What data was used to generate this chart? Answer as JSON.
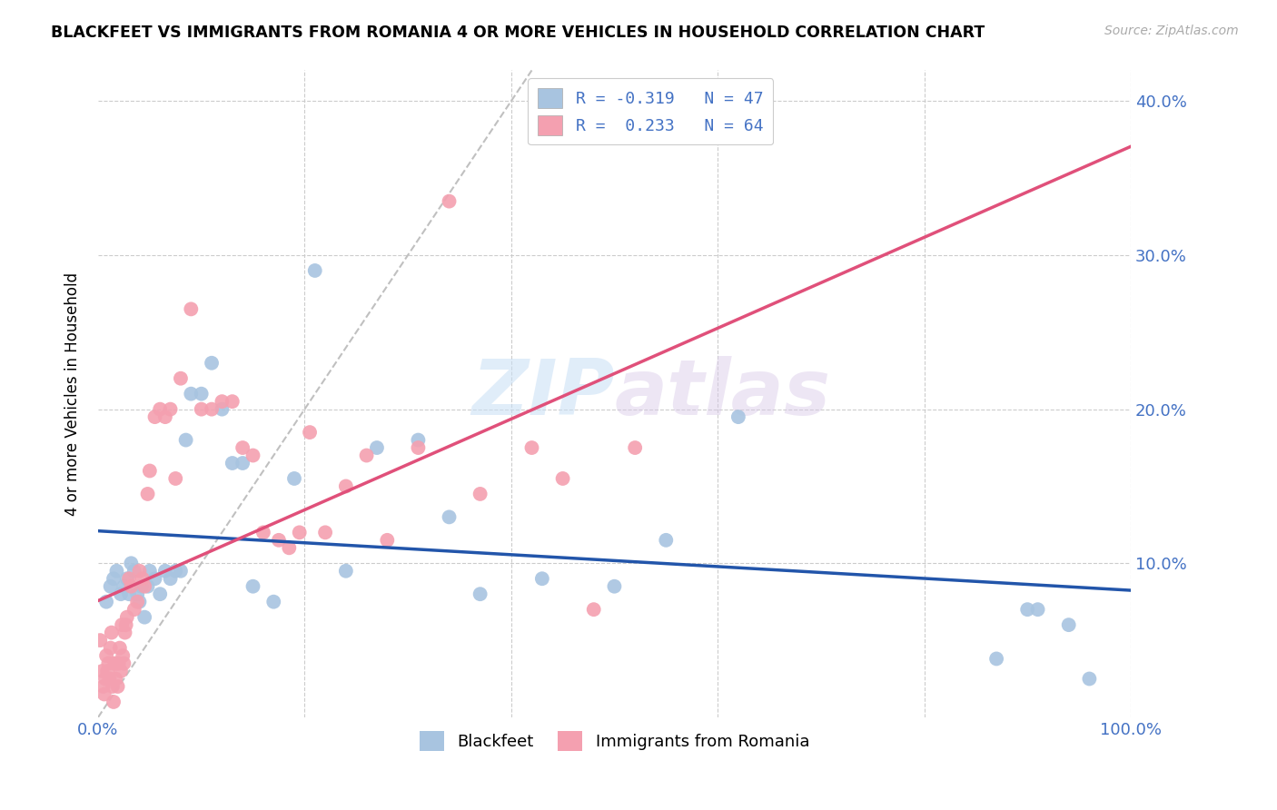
{
  "title": "BLACKFEET VS IMMIGRANTS FROM ROMANIA 4 OR MORE VEHICLES IN HOUSEHOLD CORRELATION CHART",
  "source": "Source: ZipAtlas.com",
  "ylabel": "4 or more Vehicles in Household",
  "xlim": [
    0,
    1.0
  ],
  "ylim": [
    0,
    0.42
  ],
  "yticks": [
    0.0,
    0.1,
    0.2,
    0.3,
    0.4
  ],
  "yticklabels": [
    "",
    "10.0%",
    "20.0%",
    "30.0%",
    "40.0%"
  ],
  "blue_R": "-0.319",
  "blue_N": "47",
  "pink_R": "0.233",
  "pink_N": "64",
  "blue_color": "#a8c4e0",
  "pink_color": "#f4a0b0",
  "blue_line_color": "#2255aa",
  "pink_line_color": "#e0507a",
  "diagonal_color": "#c0c0c0",
  "watermark_zip": "ZIP",
  "watermark_atlas": "atlas",
  "legend_label_blue": "Blackfeet",
  "legend_label_pink": "Immigrants from Romania",
  "blue_scatter_x": [
    0.008,
    0.012,
    0.015,
    0.018,
    0.022,
    0.025,
    0.028,
    0.03,
    0.032,
    0.035,
    0.038,
    0.04,
    0.042,
    0.045,
    0.048,
    0.05,
    0.055,
    0.06,
    0.065,
    0.07,
    0.075,
    0.08,
    0.085,
    0.09,
    0.1,
    0.11,
    0.12,
    0.13,
    0.14,
    0.15,
    0.17,
    0.19,
    0.21,
    0.24,
    0.27,
    0.31,
    0.34,
    0.37,
    0.43,
    0.5,
    0.55,
    0.62,
    0.87,
    0.9,
    0.91,
    0.94,
    0.96
  ],
  "blue_scatter_y": [
    0.075,
    0.085,
    0.09,
    0.095,
    0.08,
    0.085,
    0.09,
    0.08,
    0.1,
    0.095,
    0.08,
    0.075,
    0.085,
    0.065,
    0.085,
    0.095,
    0.09,
    0.08,
    0.095,
    0.09,
    0.095,
    0.095,
    0.18,
    0.21,
    0.21,
    0.23,
    0.2,
    0.165,
    0.165,
    0.085,
    0.075,
    0.155,
    0.29,
    0.095,
    0.175,
    0.18,
    0.13,
    0.08,
    0.09,
    0.085,
    0.115,
    0.195,
    0.038,
    0.07,
    0.07,
    0.06,
    0.025
  ],
  "pink_scatter_x": [
    0.002,
    0.004,
    0.005,
    0.006,
    0.007,
    0.008,
    0.009,
    0.01,
    0.011,
    0.012,
    0.013,
    0.014,
    0.015,
    0.016,
    0.017,
    0.018,
    0.019,
    0.02,
    0.021,
    0.022,
    0.023,
    0.024,
    0.025,
    0.026,
    0.027,
    0.028,
    0.03,
    0.032,
    0.035,
    0.038,
    0.04,
    0.043,
    0.045,
    0.048,
    0.05,
    0.055,
    0.06,
    0.065,
    0.07,
    0.075,
    0.08,
    0.09,
    0.1,
    0.11,
    0.12,
    0.13,
    0.14,
    0.15,
    0.16,
    0.175,
    0.185,
    0.195,
    0.205,
    0.22,
    0.24,
    0.26,
    0.28,
    0.31,
    0.34,
    0.37,
    0.42,
    0.45,
    0.48,
    0.52
  ],
  "pink_scatter_y": [
    0.05,
    0.03,
    0.02,
    0.015,
    0.025,
    0.04,
    0.03,
    0.035,
    0.025,
    0.045,
    0.055,
    0.02,
    0.01,
    0.035,
    0.025,
    0.035,
    0.02,
    0.035,
    0.045,
    0.03,
    0.06,
    0.04,
    0.035,
    0.055,
    0.06,
    0.065,
    0.09,
    0.085,
    0.07,
    0.075,
    0.095,
    0.09,
    0.085,
    0.145,
    0.16,
    0.195,
    0.2,
    0.195,
    0.2,
    0.155,
    0.22,
    0.265,
    0.2,
    0.2,
    0.205,
    0.205,
    0.175,
    0.17,
    0.12,
    0.115,
    0.11,
    0.12,
    0.185,
    0.12,
    0.15,
    0.17,
    0.115,
    0.175,
    0.335,
    0.145,
    0.175,
    0.155,
    0.07,
    0.175
  ]
}
